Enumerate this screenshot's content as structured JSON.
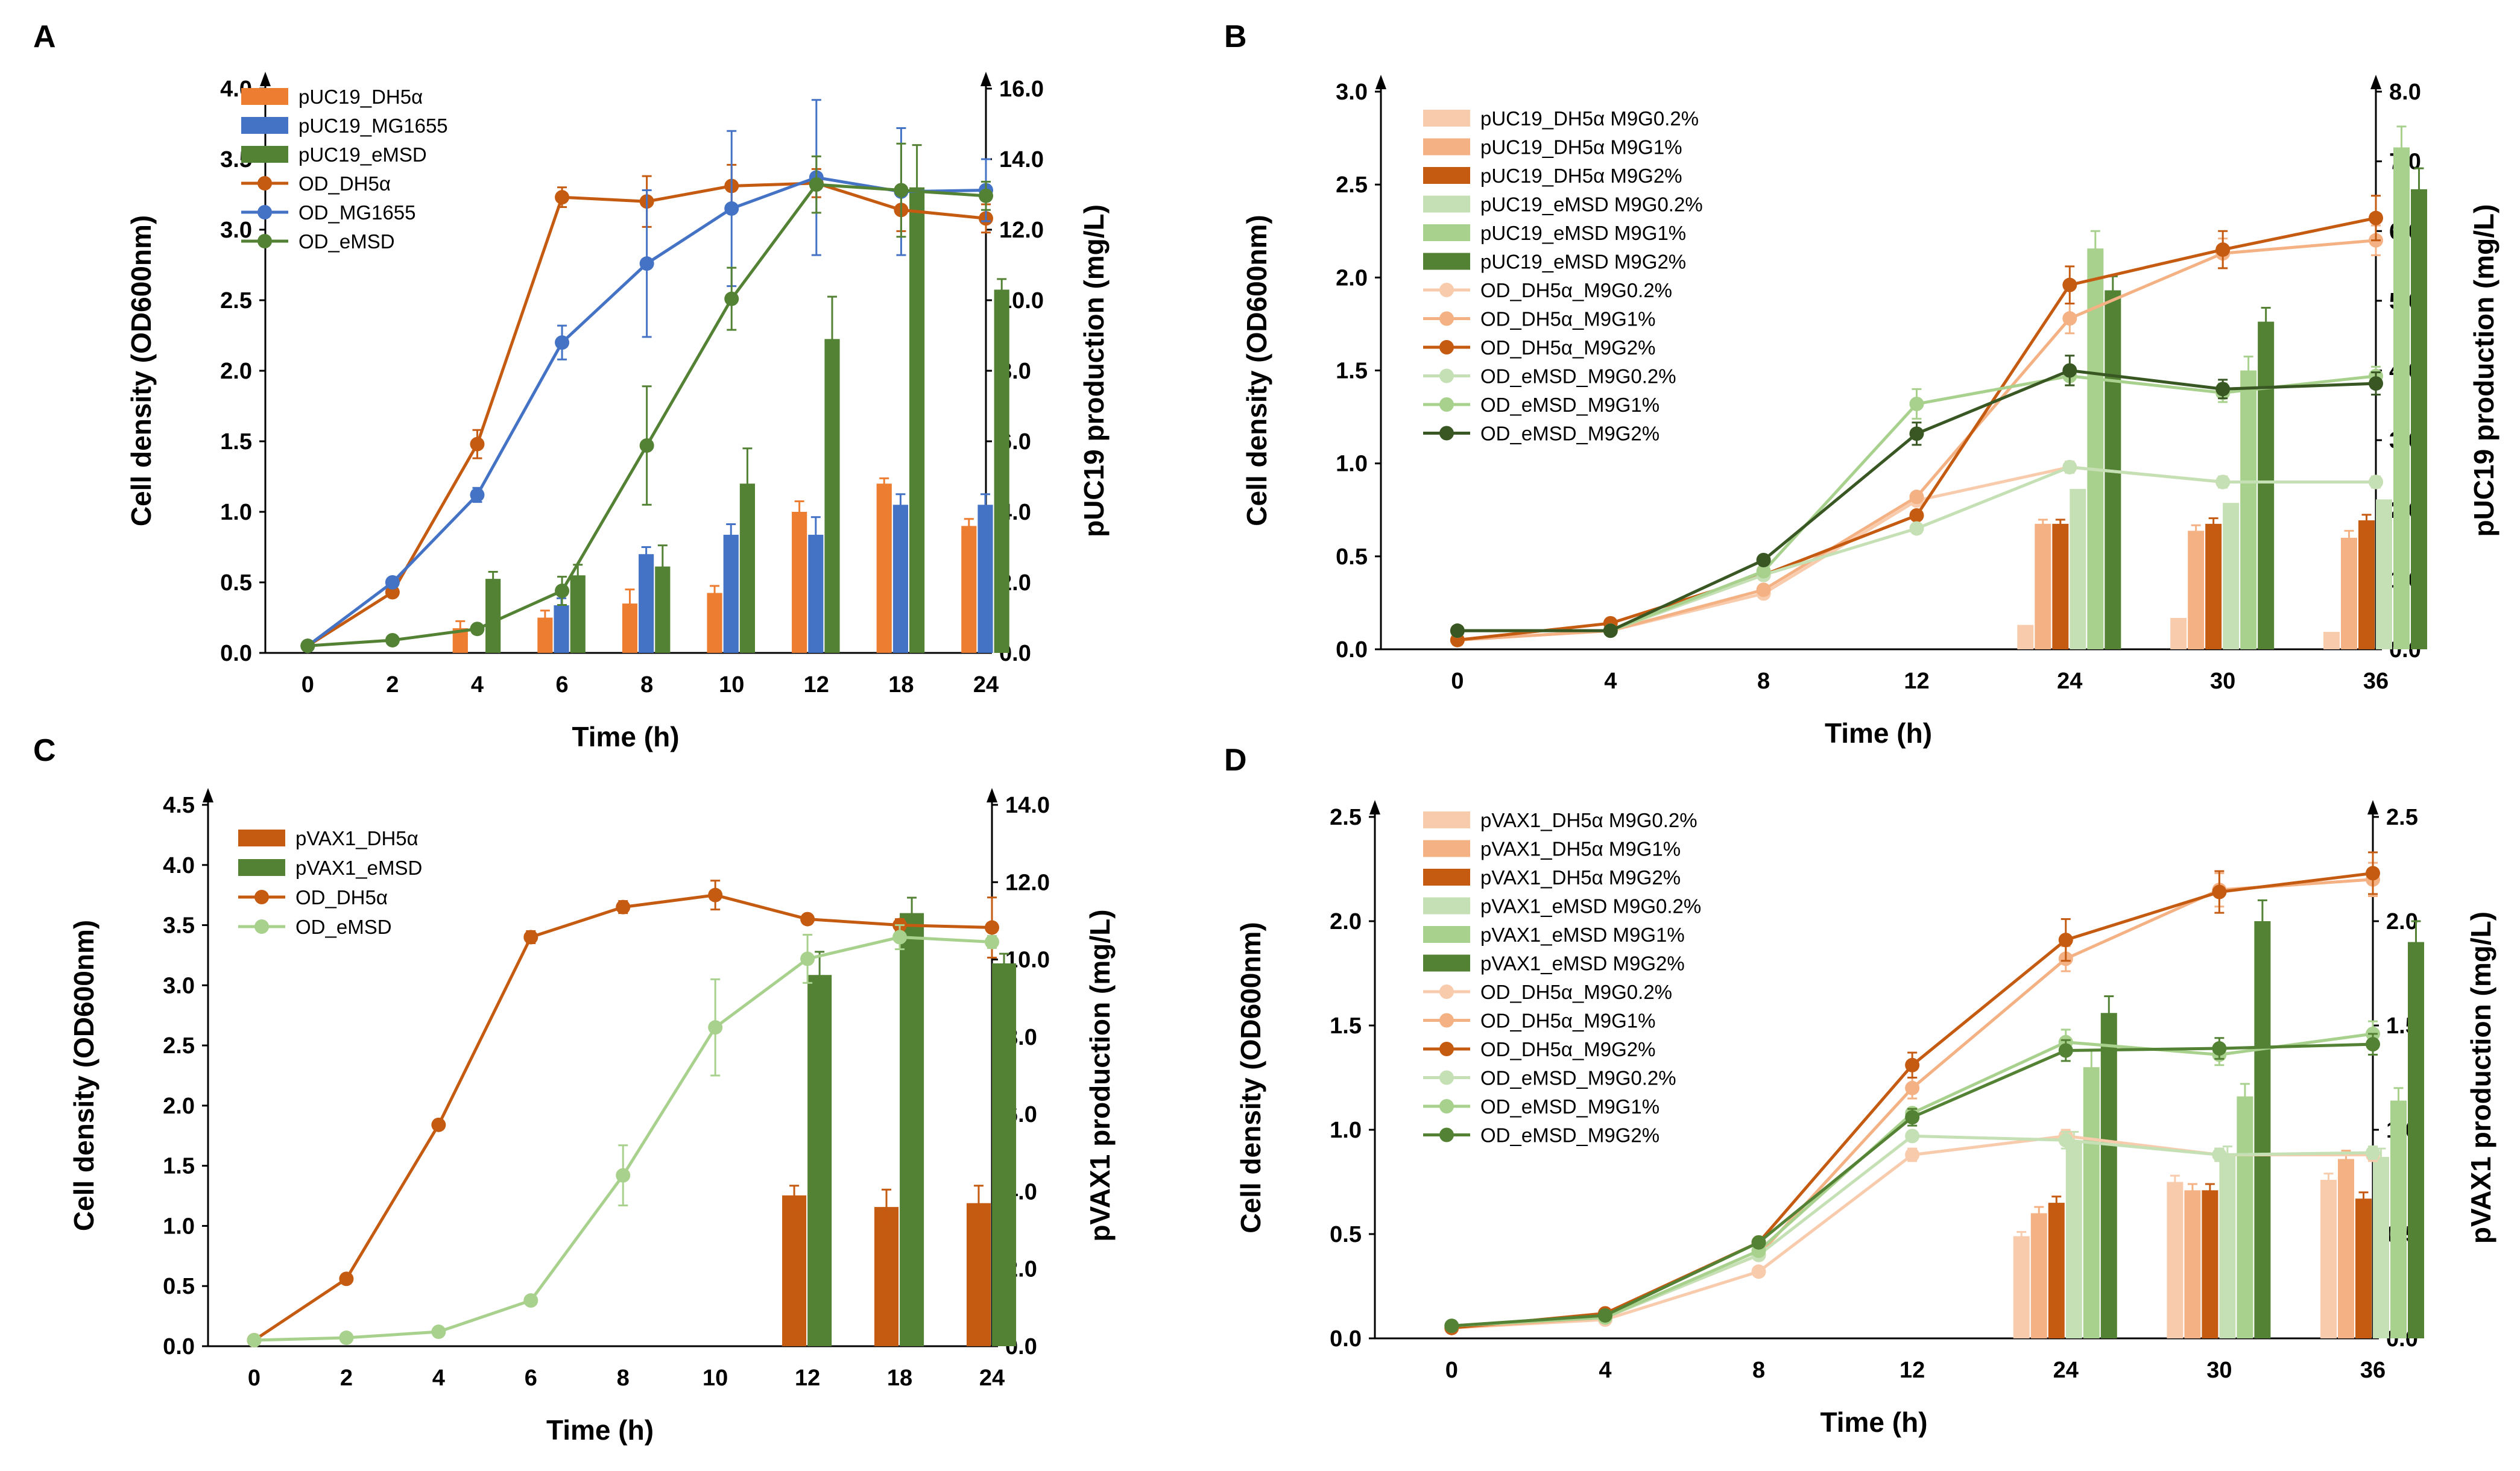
{
  "figure": {
    "panels": [
      {
        "letter": "A"
      },
      {
        "letter": "B"
      },
      {
        "letter": "C"
      },
      {
        "letter": "D"
      }
    ]
  },
  "chart_data": [
    {
      "panel": "A",
      "type": "bar+line",
      "xlabel": "Time (h)",
      "ylabel_left": "Cell density (OD600nm)",
      "ylabel_right": "pUC19 production (mg/L)",
      "categories": [
        "0",
        "2",
        "4",
        "6",
        "8",
        "10",
        "12",
        "18",
        "24"
      ],
      "ylim_left": [
        0,
        4
      ],
      "yticks_left": [
        "0.0",
        "0.5",
        "1.0",
        "1.5",
        "2.0",
        "2.5",
        "3.0",
        "3.5",
        "4.0"
      ],
      "ylim_right": [
        0,
        16
      ],
      "yticks_right": [
        "0.0",
        "2.0",
        "4.0",
        "6.0",
        "8.0",
        "10.0",
        "12.0",
        "14.0",
        "16.0"
      ],
      "bar_series": [
        {
          "name": "pUC19_DH5α",
          "color": "#ED7D31",
          "values": [
            null,
            null,
            0.7,
            1.0,
            1.4,
            1.7,
            4.0,
            4.8,
            3.6
          ],
          "errors": [
            null,
            null,
            0.2,
            0.2,
            0.4,
            0.2,
            0.3,
            0.15,
            0.2
          ]
        },
        {
          "name": "pUC19_MG1655",
          "color": "#4472C4",
          "values": [
            null,
            null,
            null,
            1.35,
            2.8,
            3.35,
            3.35,
            4.2,
            4.2
          ],
          "errors": [
            null,
            null,
            null,
            0.2,
            0.2,
            0.3,
            0.5,
            0.3,
            0.3
          ]
        },
        {
          "name": "pUC19_eMSD",
          "color": "#548235",
          "values": [
            null,
            null,
            2.1,
            2.2,
            2.45,
            4.8,
            8.9,
            13.2,
            10.3
          ],
          "errors": [
            null,
            null,
            0.2,
            0.3,
            0.6,
            1.0,
            1.2,
            1.2,
            0.3
          ]
        }
      ],
      "line_series": [
        {
          "name": "OD_DH5α",
          "color": "#C55A11",
          "values": [
            0.05,
            0.43,
            1.48,
            3.23,
            3.2,
            3.31,
            3.33,
            3.14,
            3.08
          ],
          "errors": [
            0.02,
            0.03,
            0.1,
            0.07,
            0.18,
            0.15,
            0.1,
            0.15,
            0.1
          ]
        },
        {
          "name": "OD_MG1655",
          "color": "#4472C4",
          "values": [
            0.05,
            0.5,
            1.12,
            2.2,
            2.76,
            3.15,
            3.37,
            3.27,
            3.28
          ],
          "errors": [
            0.02,
            0.03,
            0.05,
            0.12,
            0.52,
            0.55,
            0.55,
            0.45,
            0.22
          ]
        },
        {
          "name": "OD_eMSD",
          "color": "#548235",
          "values": [
            0.05,
            0.09,
            0.17,
            0.44,
            1.47,
            2.51,
            3.32,
            3.28,
            3.24
          ],
          "errors": [
            0.02,
            0.02,
            0.03,
            0.1,
            0.42,
            0.22,
            0.2,
            0.33,
            0.1
          ]
        }
      ]
    },
    {
      "panel": "B",
      "type": "bar+line",
      "xlabel": "Time (h)",
      "ylabel_left": "Cell density (OD600nm)",
      "ylabel_right": "pUC19 production (mg/L)",
      "categories": [
        "0",
        "4",
        "8",
        "12",
        "24",
        "30",
        "36"
      ],
      "ylim_left": [
        0,
        3
      ],
      "yticks_left": [
        "0.0",
        "0.5",
        "1.0",
        "1.5",
        "2.0",
        "2.5",
        "3.0"
      ],
      "ylim_right": [
        0,
        8
      ],
      "yticks_right": [
        "0.0",
        "1.0",
        "2.0",
        "3.0",
        "4.0",
        "5.0",
        "6.0",
        "7.0",
        "8.0"
      ],
      "bar_series": [
        {
          "name": "pUC19_DH5α M9G0.2%",
          "color": "#F8CBAD",
          "values": [
            null,
            null,
            null,
            null,
            0.35,
            0.45,
            0.25
          ],
          "errors": [
            null,
            null,
            null,
            null,
            null,
            null,
            null
          ]
        },
        {
          "name": "pUC19_DH5α M9G1%",
          "color": "#F4B183",
          "values": [
            null,
            null,
            null,
            null,
            1.8,
            1.7,
            1.6
          ],
          "errors": [
            null,
            null,
            null,
            null,
            0.06,
            0.08,
            0.1
          ]
        },
        {
          "name": "pUC19_DH5α M9G2%",
          "color": "#C55A11",
          "values": [
            null,
            null,
            null,
            null,
            1.8,
            1.8,
            1.85
          ],
          "errors": [
            null,
            null,
            null,
            null,
            0.06,
            0.08,
            0.08
          ]
        },
        {
          "name": "pUC19_eMSD M9G0.2%",
          "color": "#C5E0B4",
          "values": [
            null,
            null,
            null,
            null,
            2.3,
            2.1,
            2.15
          ],
          "errors": [
            null,
            null,
            null,
            null,
            null,
            null,
            null
          ]
        },
        {
          "name": "pUC19_eMSD M9G1%",
          "color": "#A9D18E",
          "values": [
            null,
            null,
            null,
            null,
            5.75,
            4.0,
            7.2
          ],
          "errors": [
            null,
            null,
            null,
            null,
            0.25,
            0.2,
            0.3
          ]
        },
        {
          "name": "pUC19_eMSD M9G2%",
          "color": "#548235",
          "values": [
            null,
            null,
            null,
            null,
            5.15,
            4.7,
            6.6
          ],
          "errors": [
            null,
            null,
            null,
            null,
            0.2,
            0.2,
            0.3
          ]
        }
      ],
      "line_series": [
        {
          "name": "OD_DH5α_M9G0.2%",
          "color": "#F8CBAD",
          "values": [
            0.05,
            0.1,
            0.3,
            0.8,
            0.98,
            0.9,
            0.9
          ],
          "errors": [
            null,
            null,
            null,
            null,
            0.03,
            0.03,
            0.03
          ]
        },
        {
          "name": "OD_DH5α_M9G1%",
          "color": "#F4B183",
          "values": [
            0.05,
            0.1,
            0.32,
            0.82,
            1.78,
            2.13,
            2.2
          ],
          "errors": [
            null,
            null,
            null,
            null,
            0.08,
            0.08,
            0.08
          ]
        },
        {
          "name": "OD_DH5α_M9G2%",
          "color": "#C55A11",
          "values": [
            0.05,
            0.14,
            0.4,
            0.72,
            1.96,
            2.15,
            2.32
          ],
          "errors": [
            null,
            null,
            null,
            null,
            0.1,
            0.1,
            0.12
          ]
        },
        {
          "name": "OD_eMSD_M9G0.2%",
          "color": "#C5E0B4",
          "values": [
            0.1,
            0.1,
            0.4,
            0.65,
            0.98,
            0.9,
            0.9
          ],
          "errors": [
            null,
            null,
            null,
            null,
            0.03,
            0.03,
            0.03
          ]
        },
        {
          "name": "OD_eMSD_M9G1%",
          "color": "#A9D18E",
          "values": [
            0.1,
            0.1,
            0.42,
            1.32,
            1.47,
            1.38,
            1.47
          ],
          "errors": [
            null,
            null,
            null,
            0.08,
            0.05,
            0.05,
            0.05
          ]
        },
        {
          "name": "OD_eMSD_M9G2%",
          "color": "#385723",
          "values": [
            0.1,
            0.1,
            0.48,
            1.16,
            1.5,
            1.4,
            1.43
          ],
          "errors": [
            null,
            null,
            null,
            0.06,
            0.08,
            0.05,
            0.06
          ]
        }
      ]
    },
    {
      "panel": "C",
      "type": "bar+line",
      "xlabel": "Time (h)",
      "ylabel_left": "Cell density (OD600nm)",
      "ylabel_right": "pVAX1 production (mg/L)",
      "categories": [
        "0",
        "2",
        "4",
        "6",
        "8",
        "10",
        "12",
        "18",
        "24"
      ],
      "ylim_left": [
        0,
        4.5
      ],
      "yticks_left": [
        "0.0",
        "0.5",
        "1.0",
        "1.5",
        "2.0",
        "2.5",
        "3.0",
        "3.5",
        "4.0",
        "4.5"
      ],
      "ylim_right": [
        0,
        14
      ],
      "yticks_right": [
        "0.0",
        "2.0",
        "4.0",
        "6.0",
        "8.0",
        "10.0",
        "12.0",
        "14.0"
      ],
      "bar_series": [
        {
          "name": "pVAX1_DH5α",
          "color": "#C55A11",
          "values": [
            null,
            null,
            null,
            null,
            null,
            null,
            3.9,
            3.6,
            3.7
          ],
          "errors": [
            null,
            null,
            null,
            null,
            null,
            null,
            0.25,
            0.45,
            0.45
          ]
        },
        {
          "name": "pVAX1_eMSD",
          "color": "#548235",
          "values": [
            null,
            null,
            null,
            null,
            null,
            null,
            9.6,
            11.2,
            9.9
          ],
          "errors": [
            null,
            null,
            null,
            null,
            null,
            null,
            0.6,
            0.4,
            0.25
          ]
        }
      ],
      "line_series": [
        {
          "name": "OD_DH5α",
          "color": "#C55A11",
          "values": [
            0.05,
            0.56,
            1.84,
            3.4,
            3.65,
            3.75,
            3.55,
            3.5,
            3.48
          ],
          "errors": [
            null,
            0.02,
            0.02,
            0.05,
            0.05,
            0.12,
            0.03,
            0.05,
            0.25
          ]
        },
        {
          "name": "OD_eMSD",
          "color": "#A9D18E",
          "values": [
            0.05,
            0.07,
            0.12,
            0.38,
            1.42,
            2.65,
            3.22,
            3.4,
            3.36
          ],
          "errors": [
            null,
            null,
            null,
            0.03,
            0.25,
            0.4,
            0.2,
            0.1,
            0.05
          ]
        }
      ]
    },
    {
      "panel": "D",
      "type": "bar+line",
      "xlabel": "Time (h)",
      "ylabel_left": "Cell density (OD600nm)",
      "ylabel_right": "pVAX1 production (mg/L)",
      "categories": [
        "0",
        "4",
        "8",
        "12",
        "24",
        "30",
        "36"
      ],
      "ylim_left": [
        0,
        2.5
      ],
      "yticks_left": [
        "0.0",
        "0.5",
        "1.0",
        "1.5",
        "2.0",
        "2.5"
      ],
      "ylim_right": [
        0,
        2.5
      ],
      "yticks_right": [
        "0.0",
        "0.5",
        "1.0",
        "1.5",
        "2.0",
        "2.5"
      ],
      "bar_series": [
        {
          "name": "pVAX1_DH5α M9G0.2%",
          "color": "#F8CBAD",
          "values": [
            null,
            null,
            null,
            null,
            0.49,
            0.75,
            0.76
          ],
          "errors": [
            null,
            null,
            null,
            null,
            0.02,
            0.03,
            0.03
          ]
        },
        {
          "name": "pVAX1_DH5α M9G1%",
          "color": "#F4B183",
          "values": [
            null,
            null,
            null,
            null,
            0.6,
            0.71,
            0.86
          ],
          "errors": [
            null,
            null,
            null,
            null,
            0.03,
            0.03,
            0.04
          ]
        },
        {
          "name": "pVAX1_DH5α M9G2%",
          "color": "#C55A11",
          "values": [
            null,
            null,
            null,
            null,
            0.65,
            0.71,
            0.67
          ],
          "errors": [
            null,
            null,
            null,
            null,
            0.03,
            0.03,
            0.03
          ]
        },
        {
          "name": "pVAX1_eMSD M9G0.2%",
          "color": "#C5E0B4",
          "values": [
            null,
            null,
            null,
            null,
            0.94,
            0.88,
            0.87
          ],
          "errors": [
            null,
            null,
            null,
            null,
            0.05,
            0.04,
            0.04
          ]
        },
        {
          "name": "pVAX1_eMSD M9G1%",
          "color": "#A9D18E",
          "values": [
            null,
            null,
            null,
            null,
            1.3,
            1.16,
            1.14
          ],
          "errors": [
            null,
            null,
            null,
            null,
            0.08,
            0.06,
            0.06
          ]
        },
        {
          "name": "pVAX1_eMSD M9G2%",
          "color": "#548235",
          "values": [
            null,
            null,
            null,
            null,
            1.56,
            2.0,
            1.9
          ],
          "errors": [
            null,
            null,
            null,
            null,
            0.08,
            0.1,
            0.1
          ]
        }
      ],
      "line_series": [
        {
          "name": "OD_DH5α_M9G0.2%",
          "color": "#F8CBAD",
          "values": [
            0.05,
            0.09,
            0.32,
            0.88,
            0.97,
            0.88,
            0.88
          ],
          "errors": [
            null,
            null,
            null,
            0.03,
            0.03,
            0.03,
            0.03
          ]
        },
        {
          "name": "OD_DH5α_M9G1%",
          "color": "#F4B183",
          "values": [
            0.05,
            0.1,
            0.4,
            1.2,
            1.82,
            2.15,
            2.2
          ],
          "errors": [
            null,
            null,
            null,
            0.05,
            0.06,
            0.08,
            0.08
          ]
        },
        {
          "name": "OD_DH5α_M9G2%",
          "color": "#C55A11",
          "values": [
            0.05,
            0.12,
            0.46,
            1.31,
            1.91,
            2.14,
            2.23
          ],
          "errors": [
            null,
            null,
            null,
            0.06,
            0.1,
            0.1,
            0.1
          ]
        },
        {
          "name": "OD_eMSD_M9G0.2%",
          "color": "#C5E0B4",
          "values": [
            0.06,
            0.1,
            0.4,
            0.97,
            0.95,
            0.88,
            0.89
          ],
          "errors": [
            null,
            null,
            null,
            null,
            0.04,
            0.03,
            0.03
          ]
        },
        {
          "name": "OD_eMSD_M9G1%",
          "color": "#A9D18E",
          "values": [
            0.06,
            0.1,
            0.42,
            1.08,
            1.42,
            1.36,
            1.46
          ],
          "errors": [
            null,
            null,
            null,
            null,
            0.06,
            0.05,
            0.06
          ]
        },
        {
          "name": "OD_eMSD_M9G2%",
          "color": "#548235",
          "values": [
            0.06,
            0.11,
            0.46,
            1.06,
            1.38,
            1.39,
            1.41
          ],
          "errors": [
            null,
            null,
            null,
            0.04,
            0.05,
            0.05,
            0.05
          ]
        }
      ]
    }
  ]
}
